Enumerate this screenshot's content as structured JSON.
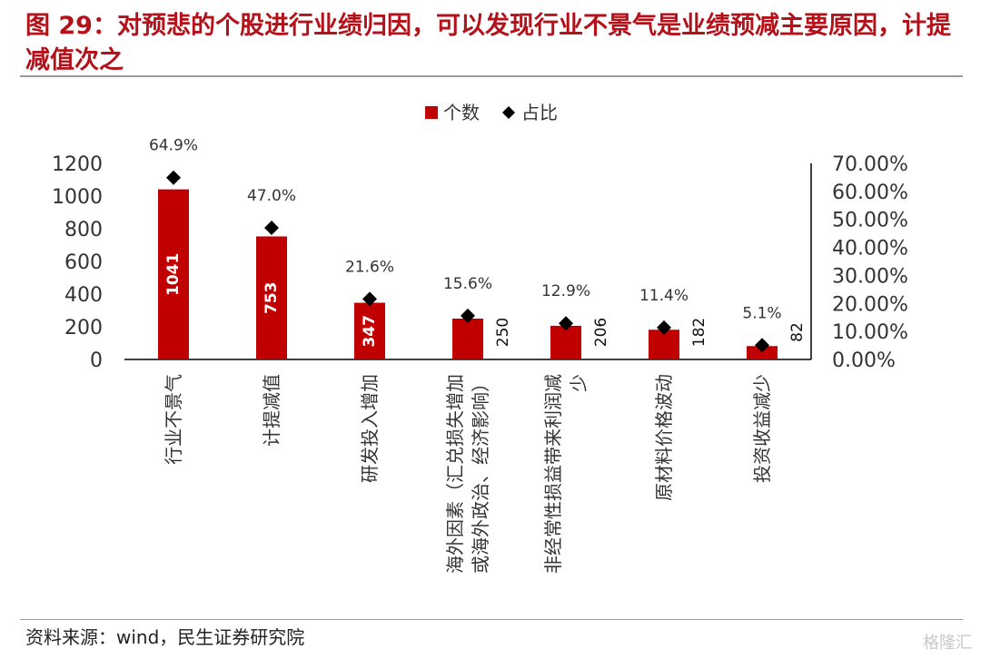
{
  "title": "图 29：对预悲的个股进行业绩归因，可以发现行业不景气是业绩预减主要原因，计提减值次之",
  "source": "资料来源：wind，民生证券研究院",
  "watermark": "格隆汇",
  "colors": {
    "bar": "#c00000",
    "marker": "#000000",
    "title": "#b3121a"
  },
  "chart_data": {
    "type": "bar",
    "categories": [
      "行业不景气",
      "计提减值",
      "研发投入增加",
      "海外因素（汇兑损失增加或海外政治、经济影响）",
      "非经常性损益带来利润减少",
      "原材料价格波动",
      "投资收益减少"
    ],
    "category_label_lines": [
      [
        "行业不景气"
      ],
      [
        "计提减值"
      ],
      [
        "研发投入增加"
      ],
      [
        "海外因素（汇兑损失增加",
        "或海外政治、经济影响）"
      ],
      [
        "非经常性损益带来利润减",
        "少"
      ],
      [
        "原材料价格波动"
      ],
      [
        "投资收益减少"
      ]
    ],
    "series": [
      {
        "name": "个数",
        "type": "bar",
        "axis": "left",
        "values": [
          1041,
          753,
          347,
          250,
          206,
          182,
          82
        ],
        "labels": [
          "1041",
          "753",
          "347",
          "250",
          "206",
          "182",
          "82"
        ]
      },
      {
        "name": "占比",
        "type": "scatter",
        "axis": "right",
        "marker": "diamond",
        "values": [
          64.9,
          47.0,
          21.6,
          15.6,
          12.9,
          11.4,
          5.1
        ],
        "labels": [
          "64.9%",
          "47.0%",
          "21.6%",
          "15.6%",
          "12.9%",
          "11.4%",
          "5.1%"
        ]
      }
    ],
    "ylim": [
      0,
      1200
    ],
    "y_ticks": [
      "0",
      "200",
      "400",
      "600",
      "800",
      "1000",
      "1200"
    ],
    "y_tick_values": [
      0,
      200,
      400,
      600,
      800,
      1000,
      1200
    ],
    "y2lim": [
      0,
      70
    ],
    "y2_ticks": [
      "0.00%",
      "10.00%",
      "20.00%",
      "30.00%",
      "40.00%",
      "50.00%",
      "60.00%",
      "70.00%"
    ],
    "y2_tick_values": [
      0,
      10,
      20,
      30,
      40,
      50,
      60,
      70
    ],
    "legend": [
      "个数",
      "占比"
    ],
    "legend_position": "top-center",
    "grid": false
  }
}
